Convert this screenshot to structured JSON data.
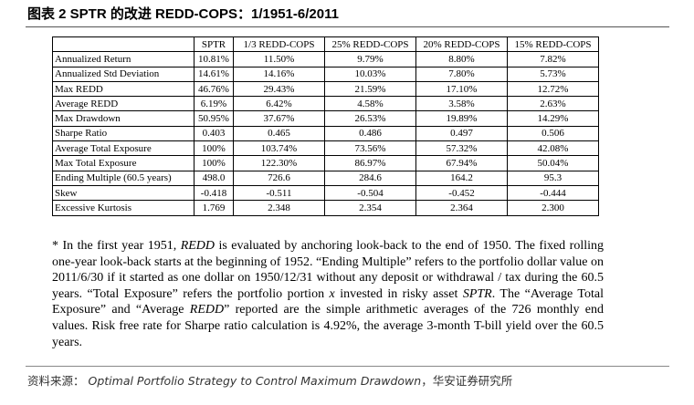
{
  "title": "图表 2 SPTR 的改进 REDD-COPS：1/1951-6/2011",
  "table": {
    "header": [
      "SPTR",
      "1/3 REDD-COPS",
      "25% REDD-COPS",
      "20% REDD-COPS",
      "15% REDD-COPS"
    ],
    "rows": [
      [
        "Annualized Return",
        "10.81%",
        "11.50%",
        "9.79%",
        "8.80%",
        "7.82%"
      ],
      [
        "Annualized Std Deviation",
        "14.61%",
        "14.16%",
        "10.03%",
        "7.80%",
        "5.73%"
      ],
      [
        "Max REDD",
        "46.76%",
        "29.43%",
        "21.59%",
        "17.10%",
        "12.72%"
      ],
      [
        "Average REDD",
        "6.19%",
        "6.42%",
        "4.58%",
        "3.58%",
        "2.63%"
      ],
      [
        "Max Drawdown",
        "50.95%",
        "37.67%",
        "26.53%",
        "19.89%",
        "14.29%"
      ],
      [
        "Sharpe Ratio",
        "0.403",
        "0.465",
        "0.486",
        "0.497",
        "0.506"
      ],
      [
        "Average Total Exposure",
        "100%",
        "103.74%",
        "73.56%",
        "57.32%",
        "42.08%"
      ],
      [
        "Max Total Exposure",
        "100%",
        "122.30%",
        "86.97%",
        "67.94%",
        "50.04%"
      ],
      [
        "Ending Multiple (60.5 years)",
        "498.0",
        "726.6",
        "284.6",
        "164.2",
        "95.3"
      ],
      [
        "Skew",
        "-0.418",
        "-0.511",
        "-0.504",
        "-0.452",
        "-0.444"
      ],
      [
        "Excessive Kurtosis",
        "1.769",
        "2.348",
        "2.354",
        "2.364",
        "2.300"
      ]
    ]
  },
  "footnote": [
    "* In the first year 1951, ",
    "REDD",
    " is evaluated by anchoring look-back to the end of 1950. The fixed rolling one-year look-back starts at the beginning of 1952. “Ending Multiple” refers to the portfolio dollar value on 2011/6/30 if it started as one dollar on 1950/12/31 without any deposit or withdrawal / tax during the 60.5 years. “Total Exposure” refers the portfolio portion ",
    "x",
    " invested in risky asset ",
    "SPTR",
    ". The “Average Total Exposure” and “Average ",
    "REDD",
    "” reported are the simple arithmetic averages of the 726 monthly end values. Risk free rate for Sharpe ratio calculation is 4.92%, the average 3-month T-bill yield over the 60.5 years."
  ],
  "source": {
    "label": "资料来源：",
    "title": "Optimal Portfolio Strategy to Control Maximum Drawdown",
    "org": "，华安证券研究所"
  }
}
